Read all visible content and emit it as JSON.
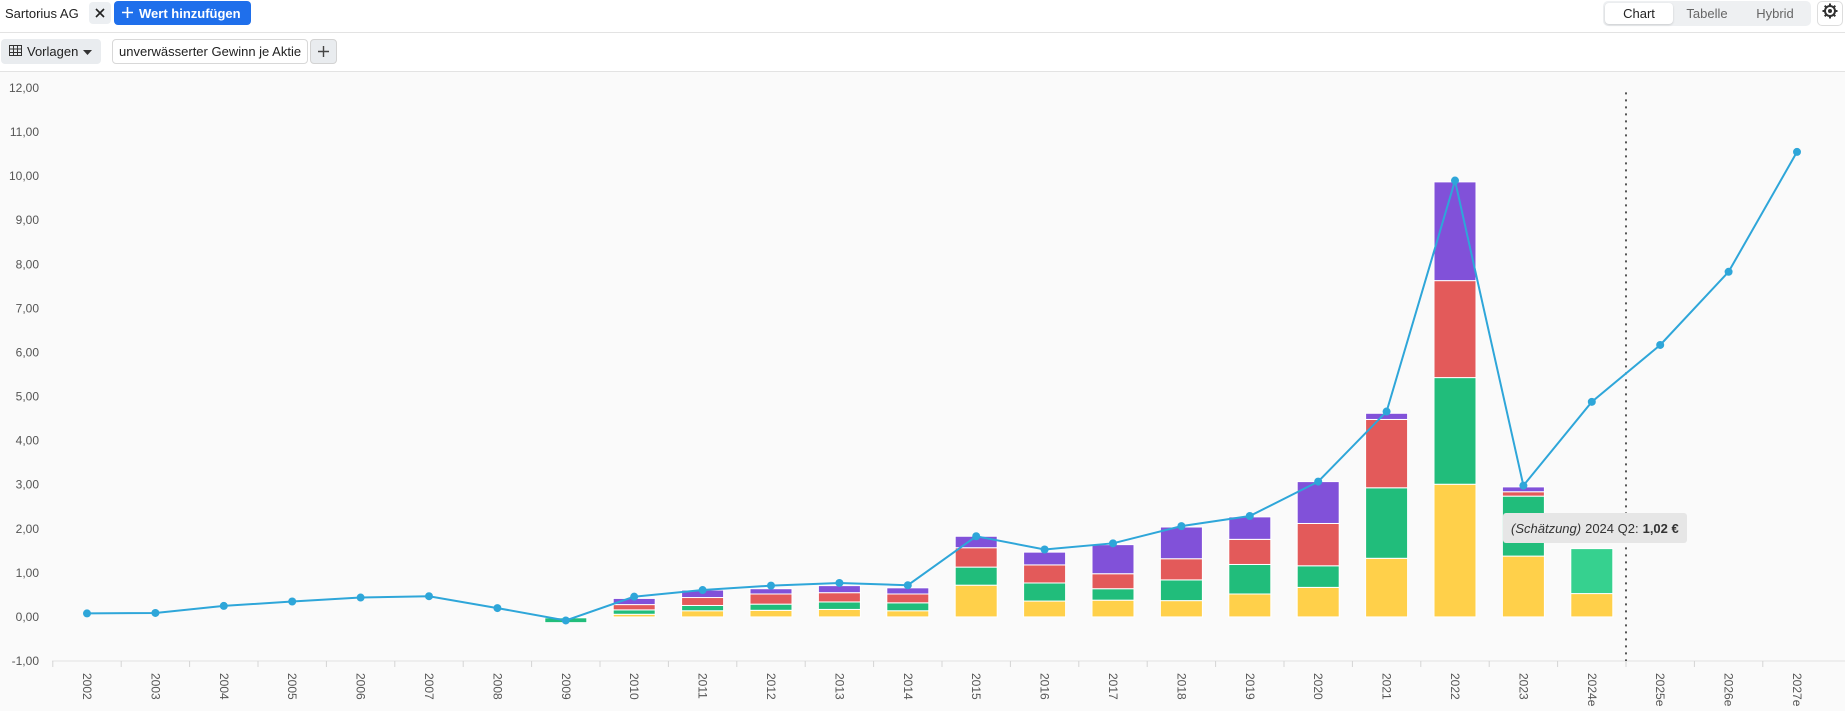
{
  "header": {
    "company": "Sartorius AG",
    "add_value_label": "Wert hinzufügen",
    "view_tabs": [
      "Chart",
      "Tabelle",
      "Hybrid"
    ],
    "active_view": "Chart"
  },
  "toolbar": {
    "templates_label": "Vorlagen",
    "metric_label": "unverwässerter Gewinn je Aktie"
  },
  "tooltip": {
    "prefix": "(Schätzung)",
    "period": "2024 Q2:",
    "value": "1,02 €"
  },
  "colors": {
    "q1": "#ffd04a",
    "q2": "#21bd7b",
    "q3": "#e35a5a",
    "q4": "#8151d9",
    "line": "#2ea6d9",
    "estimate_q2": "#36d18f",
    "accent": "#1f6feb"
  },
  "chart_data": {
    "type": "bar",
    "stacked": true,
    "categories": [
      "2002",
      "2003",
      "2004",
      "2005",
      "2006",
      "2007",
      "2008",
      "2009",
      "2010",
      "2011",
      "2012",
      "2013",
      "2014",
      "2015",
      "2016",
      "2017",
      "2018",
      "2019",
      "2020",
      "2021",
      "2022",
      "2023",
      "2024e",
      "2025e",
      "2026e",
      "2027e"
    ],
    "series": [
      {
        "key": "q1",
        "values": [
          null,
          null,
          null,
          null,
          null,
          null,
          null,
          -0.02,
          0.06,
          0.14,
          0.15,
          0.17,
          0.14,
          0.72,
          0.36,
          0.38,
          0.37,
          0.52,
          0.67,
          1.33,
          3.01,
          1.38,
          0.53,
          null,
          null,
          null
        ]
      },
      {
        "key": "q2",
        "values": [
          null,
          null,
          null,
          null,
          null,
          null,
          null,
          -0.11,
          0.1,
          0.12,
          0.14,
          0.17,
          0.18,
          0.41,
          0.41,
          0.26,
          0.47,
          0.67,
          0.49,
          1.6,
          2.42,
          1.36,
          1.02,
          null,
          null,
          null
        ]
      },
      {
        "key": "q3",
        "values": [
          null,
          null,
          null,
          null,
          null,
          null,
          null,
          null,
          0.12,
          0.18,
          0.23,
          0.21,
          0.2,
          0.44,
          0.41,
          0.34,
          0.48,
          0.57,
          0.96,
          1.55,
          2.2,
          0.1,
          null,
          null,
          null,
          null
        ]
      },
      {
        "key": "q4",
        "values": [
          null,
          null,
          null,
          null,
          null,
          null,
          null,
          null,
          0.14,
          0.17,
          0.12,
          0.16,
          0.14,
          0.26,
          0.29,
          0.66,
          0.72,
          0.51,
          0.95,
          0.14,
          2.24,
          0.11,
          null,
          null,
          null,
          null
        ]
      }
    ],
    "line": {
      "values": [
        0.08,
        0.09,
        0.25,
        0.35,
        0.44,
        0.47,
        0.2,
        -0.08,
        0.46,
        0.61,
        0.71,
        0.77,
        0.72,
        1.83,
        1.53,
        1.67,
        2.06,
        2.29,
        3.07,
        4.66,
        9.9,
        2.98,
        4.88,
        6.17,
        7.83,
        10.55
      ]
    },
    "estimate_start": "2024e",
    "ylim": [
      -1,
      12
    ],
    "yticks": [
      "12,00",
      "11,00",
      "10,00",
      "9,00",
      "8,00",
      "7,00",
      "6,00",
      "5,00",
      "4,00",
      "3,00",
      "2,00",
      "1,00",
      "0,00",
      "-1,00"
    ],
    "grid": false
  }
}
